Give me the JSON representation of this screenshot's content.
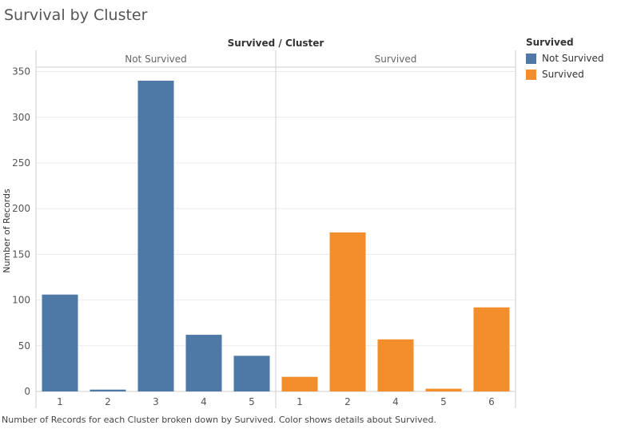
{
  "title": "Survival by Cluster",
  "caption": "Number of Records for each Cluster broken down by Survived.  Color shows details about Survived.",
  "legend": {
    "title": "Survived",
    "items": [
      {
        "label": "Not Survived",
        "color": "#4e79a7"
      },
      {
        "label": "Survived",
        "color": "#f28e2b"
      }
    ]
  },
  "chart_data": {
    "type": "bar",
    "title": "Survival by Cluster",
    "column_header": "Survived / Cluster",
    "ylabel": "Number of Records",
    "xlabel": "",
    "ylim": [
      0,
      370
    ],
    "yticks": [
      0,
      50,
      100,
      150,
      200,
      250,
      300,
      350
    ],
    "grid": true,
    "legend_position": "right",
    "panels": [
      {
        "name": "Not Survived",
        "color": "#4e79a7",
        "categories": [
          "1",
          "2",
          "3",
          "4",
          "5"
        ],
        "values": [
          106,
          2,
          340,
          62,
          39
        ]
      },
      {
        "name": "Survived",
        "color": "#f28e2b",
        "categories": [
          "1",
          "2",
          "4",
          "5",
          "6"
        ],
        "values": [
          16,
          174,
          57,
          3,
          92
        ]
      }
    ]
  }
}
